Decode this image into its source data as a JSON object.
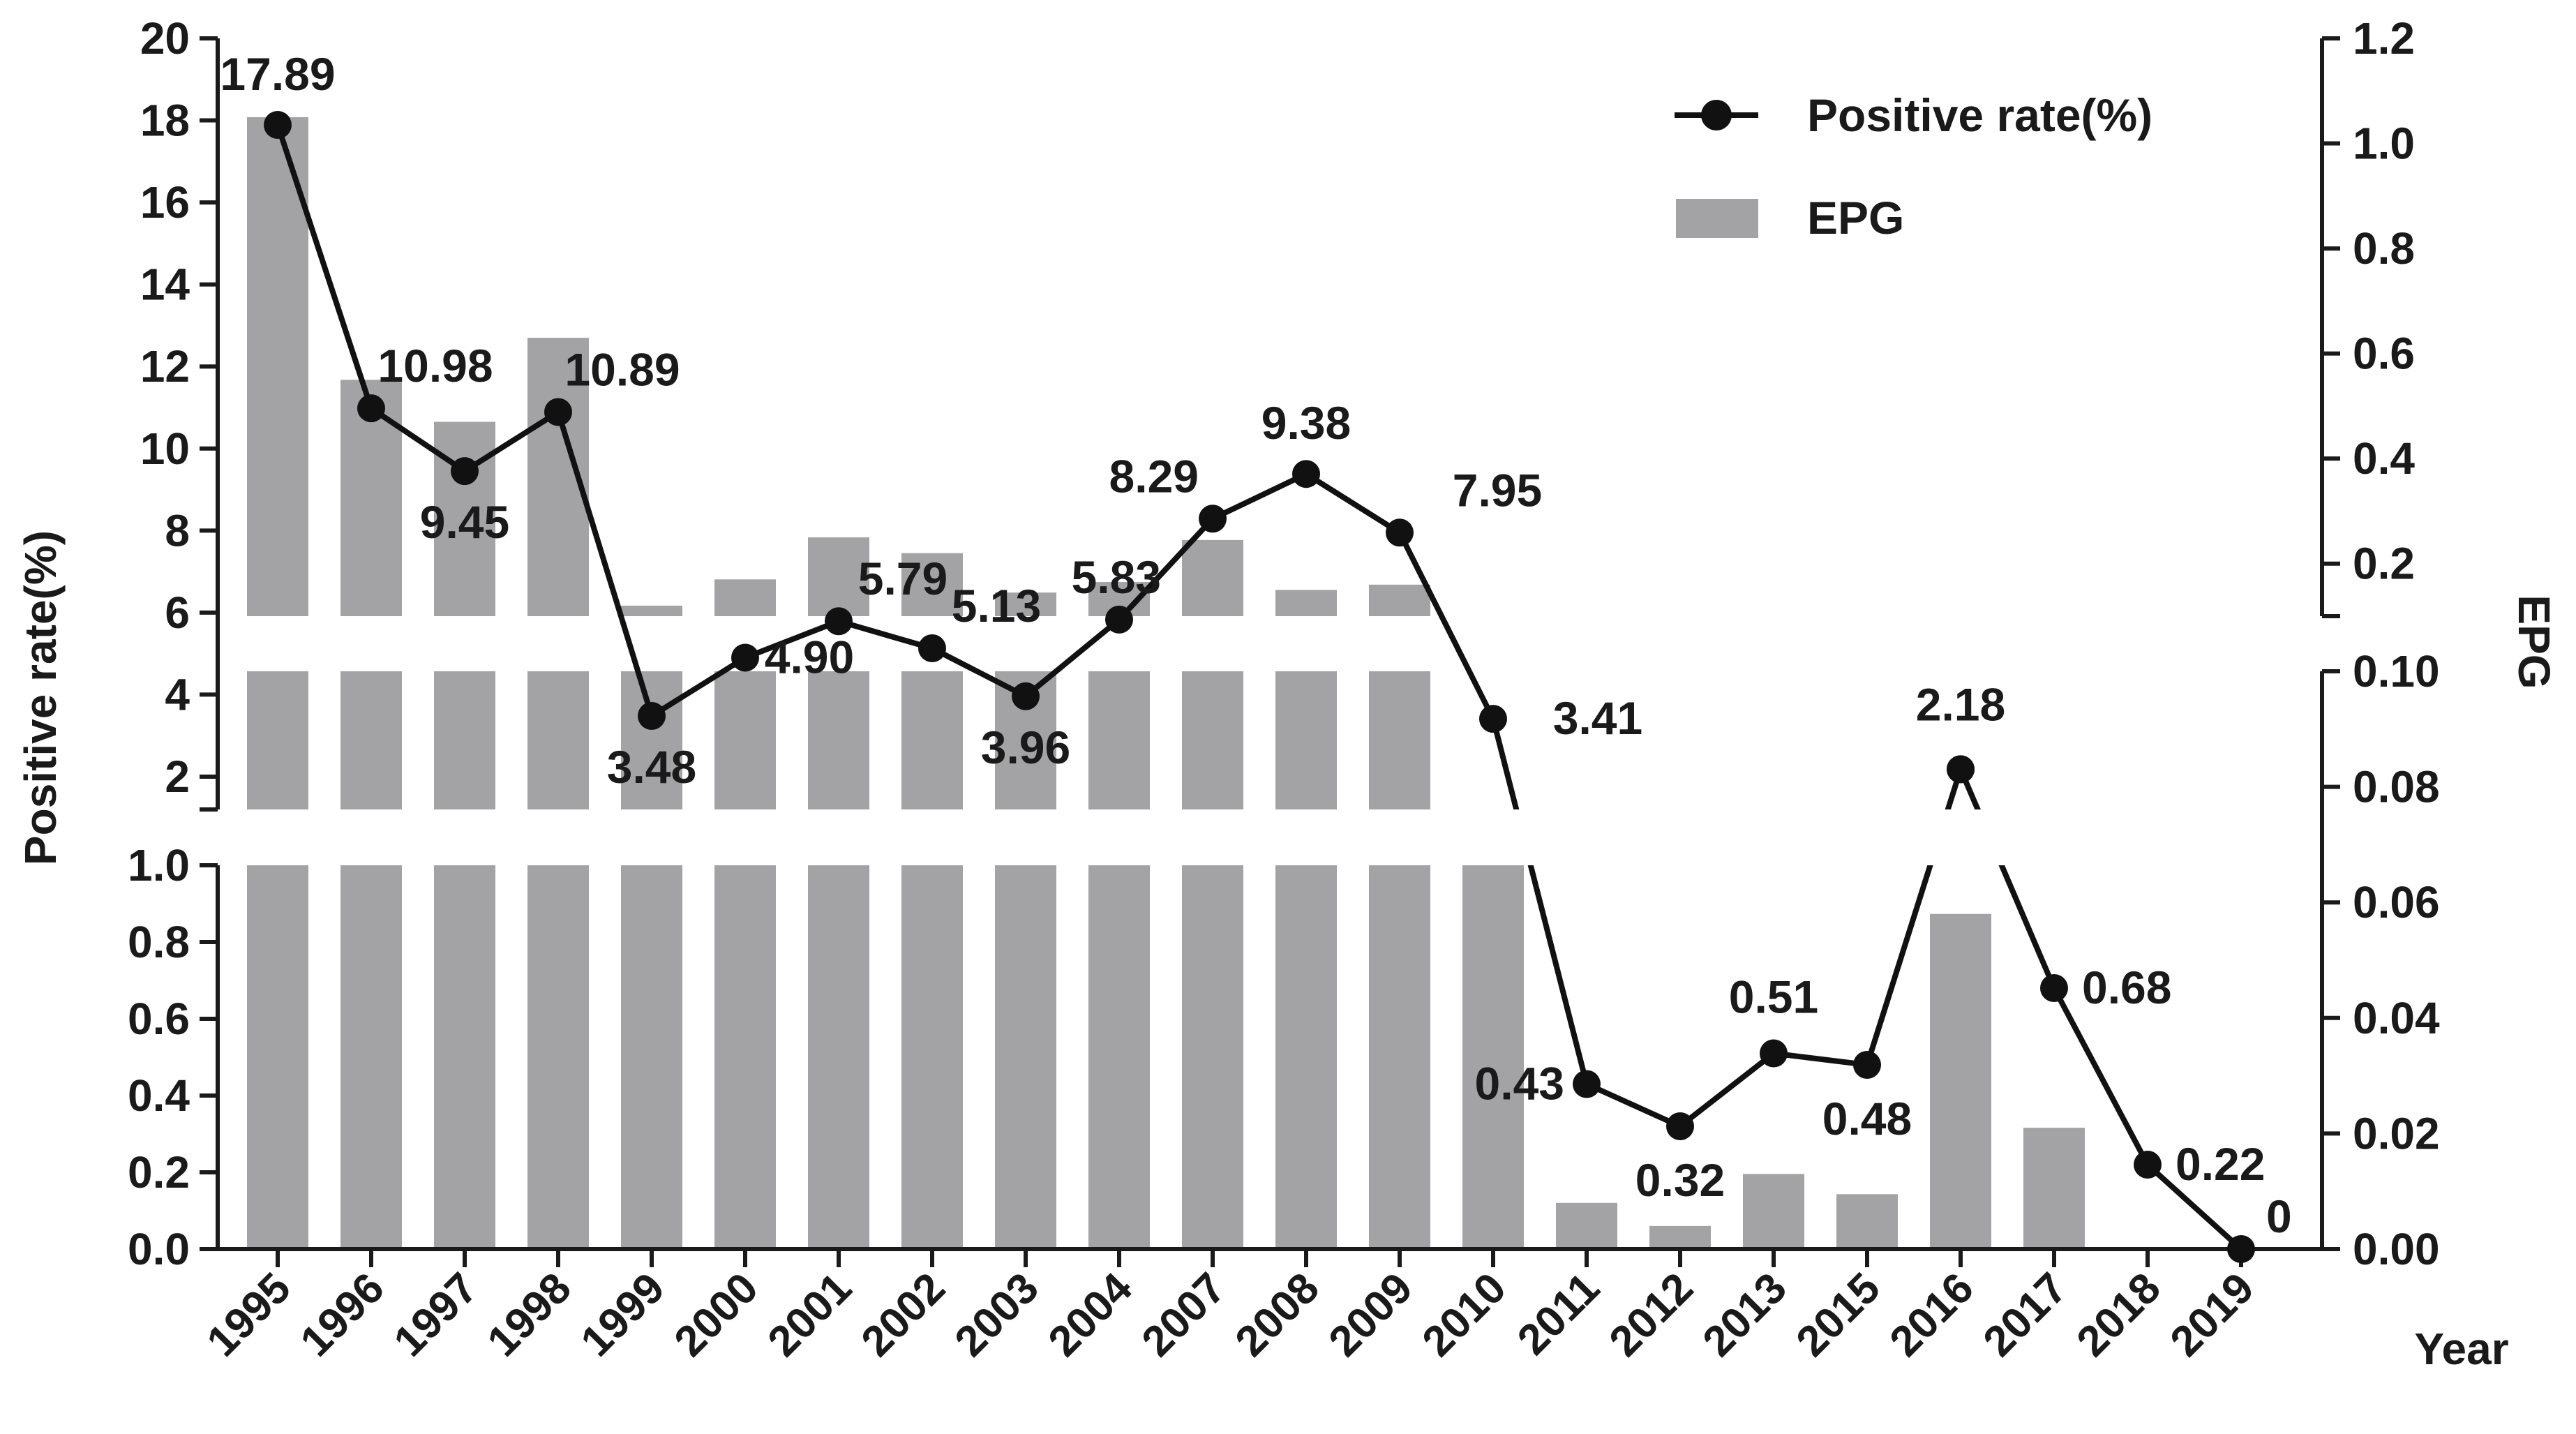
{
  "chart_data": {
    "type": "bar+line",
    "title": "",
    "xlabel": "Year",
    "ylabel_left": "Positive rate(%)",
    "ylabel_right": "EPG",
    "categories": [
      "1995",
      "1996",
      "1997",
      "1998",
      "1999",
      "2000",
      "2001",
      "2002",
      "2003",
      "2004",
      "2007",
      "2008",
      "2009",
      "2010",
      "2011",
      "2012",
      "2013",
      "2015",
      "2016",
      "2017",
      "2018",
      "2019"
    ],
    "series": [
      {
        "name": "Positive rate(%)",
        "type": "line",
        "axis": "left",
        "values": [
          17.89,
          10.98,
          9.45,
          10.89,
          3.48,
          4.9,
          5.79,
          5.13,
          3.96,
          5.83,
          8.29,
          9.38,
          7.95,
          3.41,
          0.43,
          0.32,
          0.51,
          0.48,
          2.18,
          0.68,
          0.22,
          0
        ],
        "labels": [
          "17.89",
          "10.98",
          "9.45",
          "10.89",
          "3.48",
          "4.90",
          "5.79",
          "5.13",
          "3.96",
          "5.83",
          "8.29",
          "9.38",
          "7.95",
          "3.41",
          "0.43",
          "0.32",
          "0.51",
          "0.48",
          "2.18",
          "0.68",
          "0.22",
          "0"
        ]
      },
      {
        "name": "EPG",
        "type": "bar",
        "axis": "right",
        "values": [
          1.05,
          0.55,
          0.47,
          0.63,
          0.12,
          0.17,
          0.25,
          0.22,
          0.145,
          0.165,
          0.245,
          0.15,
          0.16,
          0.071,
          0.008,
          0.004,
          0.013,
          0.0095,
          0.058,
          0.021,
          0,
          0
        ]
      }
    ],
    "left_axis": {
      "lower_segment": {
        "range": [
          0,
          1.0
        ],
        "ticks": [
          "0.0",
          "0.2",
          "0.4",
          "0.6",
          "0.8",
          "1.0"
        ]
      },
      "upper_segment": {
        "range": [
          1.2,
          20
        ],
        "ticks": [
          "2",
          "4",
          "6",
          "8",
          "10",
          "12",
          "14",
          "16",
          "18",
          "20"
        ]
      }
    },
    "right_axis": {
      "lower_segment": {
        "range": [
          0,
          0.1
        ],
        "ticks": [
          "0.00",
          "0.02",
          "0.04",
          "0.06",
          "0.08",
          "0.10"
        ]
      },
      "upper_segment": {
        "range": [
          0.1,
          1.2
        ],
        "ticks": [
          "0.2",
          "0.4",
          "0.6",
          "0.8",
          "1.0",
          "1.2"
        ]
      }
    },
    "legend": [
      {
        "label": "Positive rate(%)",
        "kind": "line-marker"
      },
      {
        "label": "EPG",
        "kind": "bar"
      }
    ],
    "legend_position": "top-right",
    "grid": false,
    "colors": {
      "bar": "#a3a3a6",
      "line": "#111111",
      "axis": "#1a1a1a",
      "background": "#ffffff"
    }
  }
}
